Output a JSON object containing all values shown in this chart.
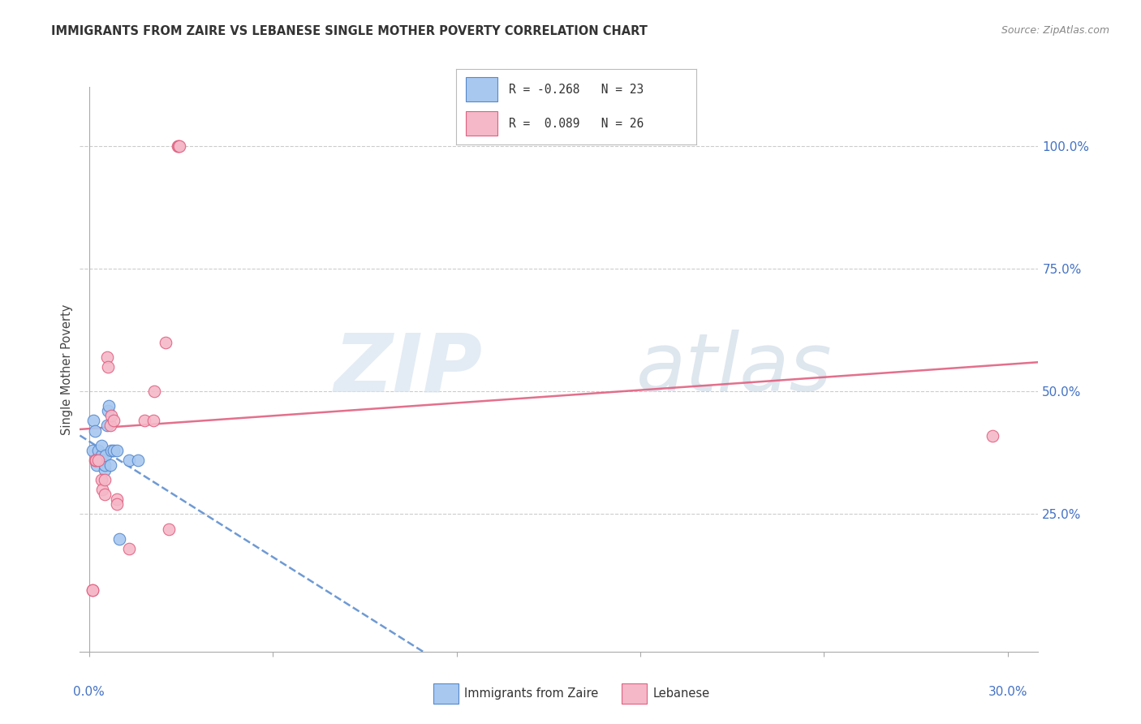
{
  "title": "IMMIGRANTS FROM ZAIRE VS LEBANESE SINGLE MOTHER POVERTY CORRELATION CHART",
  "source": "Source: ZipAtlas.com",
  "ylabel": "Single Mother Poverty",
  "zaire_color": "#a8c8f0",
  "lebanese_color": "#f5b8c8",
  "trend_zaire_color": "#5588cc",
  "trend_lebanese_color": "#e06080",
  "watermark_zip": "ZIP",
  "watermark_atlas": "atlas",
  "zaire_points_x": [
    0.1,
    0.15,
    0.2,
    0.25,
    0.25,
    0.3,
    0.35,
    0.4,
    0.4,
    0.45,
    0.5,
    0.5,
    0.55,
    0.6,
    0.62,
    0.65,
    0.7,
    0.72,
    0.8,
    0.9,
    1.0,
    1.3,
    1.6
  ],
  "zaire_points_y": [
    38,
    44,
    42,
    36,
    35,
    38,
    36,
    37,
    39,
    36,
    34,
    35,
    37,
    43,
    46,
    47,
    35,
    38,
    38,
    38,
    20,
    36,
    36
  ],
  "lebanese_points_x": [
    0.1,
    0.12,
    0.2,
    0.22,
    0.3,
    0.4,
    0.42,
    0.5,
    0.52,
    0.6,
    0.62,
    0.7,
    0.72,
    0.8,
    0.9,
    0.92,
    1.3,
    1.8,
    2.1,
    2.12,
    2.5,
    2.6,
    2.9,
    2.92,
    2.95,
    29.5
  ],
  "lebanese_points_y": [
    9.5,
    9.5,
    36,
    36,
    36,
    32,
    30,
    32,
    29,
    57,
    55,
    43,
    45,
    44,
    28,
    27,
    18,
    44,
    44,
    50,
    60,
    22,
    100,
    100,
    100,
    41
  ],
  "xlim_left": -0.3,
  "xlim_right": 31.0,
  "ylim_bottom": -3,
  "ylim_top": 112,
  "xtick_positions": [
    0,
    6,
    12,
    18,
    24,
    30
  ],
  "ytick_right_vals": [
    100,
    75,
    50,
    25
  ],
  "ytick_right_labels": [
    "100.0%",
    "75.0%",
    "50.0%",
    "25.0%"
  ],
  "xlabel_left_label": "0.0%",
  "xlabel_right_label": "30.0%",
  "title_fontsize": 10.5,
  "source_fontsize": 9,
  "axis_label_color": "#4472c4",
  "grid_color": "#cccccc",
  "spine_color": "#aaaaaa"
}
